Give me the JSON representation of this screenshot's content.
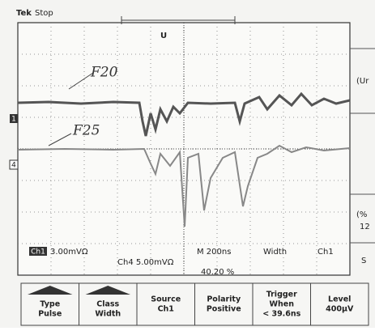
{
  "header": {
    "brand": "Tek",
    "status": "Stop"
  },
  "annotations": [
    "F20",
    "F25"
  ],
  "channel_markers": [
    "1",
    "4"
  ],
  "readouts": {
    "ch1_label": "Ch1",
    "ch1_scale": "3.00mVΩ",
    "ch4": "Ch4 5.00mVΩ",
    "timebase": "M 200ns",
    "trigger_type": "Width",
    "trigger_source": "Ch1",
    "position": "40.20 %"
  },
  "menu": [
    {
      "lines": [
        "Type",
        "Pulse"
      ]
    },
    {
      "lines": [
        "Class",
        "Width"
      ]
    },
    {
      "lines": [
        "Source",
        "Ch1"
      ]
    },
    {
      "lines": [
        "Polarity",
        "Positive"
      ]
    },
    {
      "lines": [
        "Trigger",
        "When",
        "< 39.6ns"
      ]
    },
    {
      "lines": [
        "Level",
        "400µV"
      ]
    }
  ],
  "side_menu": [
    "(Ur",
    "(%",
    "12",
    "S"
  ]
}
